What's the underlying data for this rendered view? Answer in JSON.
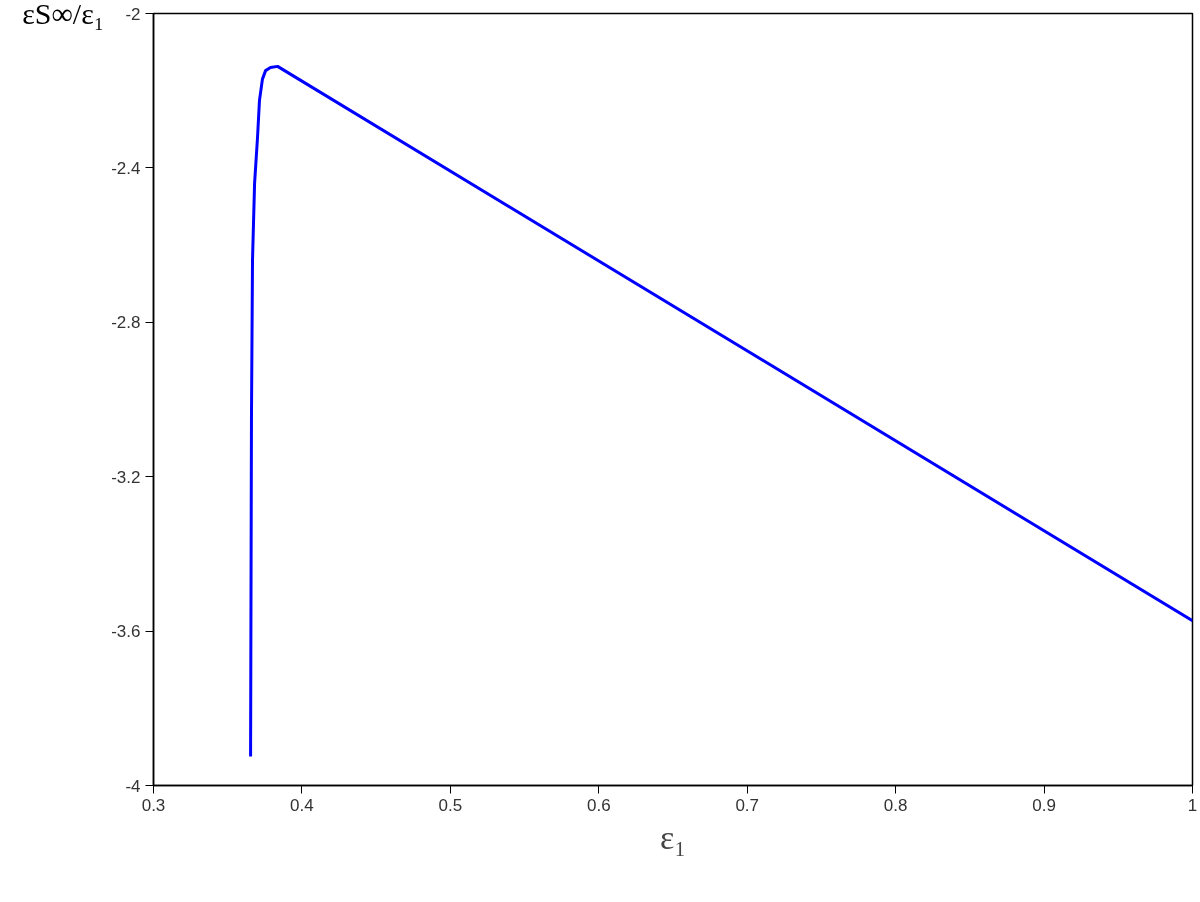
{
  "chart_data": {
    "type": "line",
    "xlabel": "ε₁",
    "ylabel": "εS∞/ε₁",
    "x": [
      0.3654,
      0.366,
      0.3667,
      0.3681,
      0.3701,
      0.3714,
      0.3734,
      0.3755,
      0.3788,
      0.3836,
      1.0
    ],
    "series": [
      {
        "color": "#0000ff",
        "values": [
          -3.925,
          -3.05,
          -2.64,
          -2.44,
          -2.32,
          -2.225,
          -2.17,
          -2.148,
          -2.14,
          -2.137,
          -3.573
        ]
      }
    ],
    "xlim": [
      0.3,
      1
    ],
    "ylim": [
      -4,
      -2
    ],
    "xticks": [
      0.3,
      0.4,
      0.5,
      0.6,
      0.7,
      0.8,
      0.9,
      1
    ],
    "yticks": [
      -4,
      -3.6,
      -3.2,
      -2.8,
      -2.4,
      -2
    ],
    "grid": false,
    "marker": "none",
    "line_style": "solid"
  }
}
